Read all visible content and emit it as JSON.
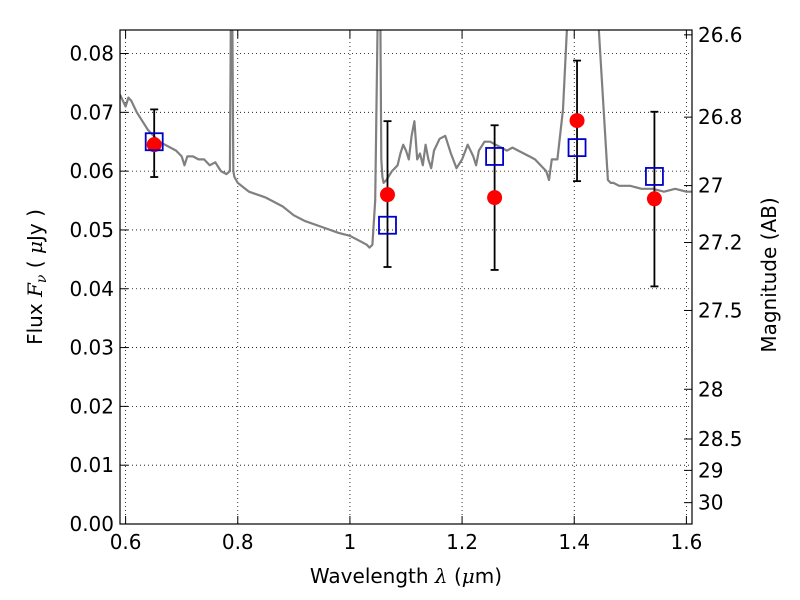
{
  "chart_data": {
    "type": "scatter",
    "xlabel_parts": [
      "Wavelength  ",
      "λ",
      " (",
      "μ",
      "m)"
    ],
    "ylabel_parts": [
      "Flux  ",
      "F",
      "ν",
      "  ( ",
      "μ",
      "Jy )"
    ],
    "y2label": "Magnitude (AB)",
    "xlim": [
      0.59,
      1.61
    ],
    "ylim": [
      0.0,
      0.084
    ],
    "grid": true,
    "x_ticks": [
      0.6,
      0.8,
      1.0,
      1.2,
      1.4,
      1.6
    ],
    "x_tick_labels": [
      "0.6",
      "0.8",
      "1",
      "1.2",
      "1.4",
      "1.6"
    ],
    "y_ticks": [
      0.0,
      0.01,
      0.02,
      0.03,
      0.04,
      0.05,
      0.06,
      0.07,
      0.08
    ],
    "y_tick_labels": [
      "0.00",
      "0.01",
      "0.02",
      "0.03",
      "0.04",
      "0.05",
      "0.06",
      "0.07",
      "0.08"
    ],
    "y2_ticks": [
      {
        "label": "26.6",
        "mag": 26.6
      },
      {
        "label": "26.8",
        "mag": 26.8
      },
      {
        "label": "27",
        "mag": 27.0
      },
      {
        "label": "27.2",
        "mag": 27.2
      },
      {
        "label": "27.5",
        "mag": 27.5
      },
      {
        "label": "28",
        "mag": 28.0
      },
      {
        "label": "28.5",
        "mag": 28.5
      },
      {
        "label": "29",
        "mag": 29.0
      },
      {
        "label": "30",
        "mag": 30.0
      }
    ],
    "colors": {
      "model": "#808080",
      "observed": "#ff0000",
      "model_photometry": "#0000cc",
      "errorbar": "#000000"
    },
    "model_spectrum": {
      "x": [
        0.59,
        0.6,
        0.605,
        0.61,
        0.62,
        0.63,
        0.64,
        0.65,
        0.66,
        0.67,
        0.68,
        0.69,
        0.7,
        0.705,
        0.71,
        0.72,
        0.73,
        0.74,
        0.75,
        0.76,
        0.77,
        0.78,
        0.786,
        0.788,
        0.79,
        0.792,
        0.794,
        0.8,
        0.82,
        0.85,
        0.88,
        0.9,
        0.92,
        0.95,
        0.98,
        1.0,
        1.02,
        1.03,
        1.035,
        1.04,
        1.045,
        1.05,
        1.054,
        1.056,
        1.058,
        1.06,
        1.065,
        1.075,
        1.085,
        1.09,
        1.095,
        1.1,
        1.105,
        1.11,
        1.115,
        1.12,
        1.125,
        1.13,
        1.135,
        1.14,
        1.145,
        1.15,
        1.16,
        1.17,
        1.18,
        1.19,
        1.2,
        1.21,
        1.22,
        1.225,
        1.23,
        1.24,
        1.25,
        1.26,
        1.27,
        1.28,
        1.29,
        1.3,
        1.31,
        1.32,
        1.33,
        1.34,
        1.35,
        1.355,
        1.36,
        1.37,
        1.38,
        1.39,
        1.395,
        1.4,
        1.42,
        1.44,
        1.46,
        1.465,
        1.47,
        1.48,
        1.5,
        1.52,
        1.54,
        1.56,
        1.58,
        1.6,
        1.61
      ],
      "y": [
        0.073,
        0.071,
        0.0725,
        0.072,
        0.07,
        0.0685,
        0.067,
        0.066,
        0.065,
        0.0645,
        0.064,
        0.0635,
        0.0625,
        0.061,
        0.0625,
        0.0625,
        0.062,
        0.062,
        0.061,
        0.0615,
        0.06,
        0.0595,
        0.06,
        0.09,
        0.09,
        0.06,
        0.059,
        0.058,
        0.0565,
        0.0555,
        0.054,
        0.0525,
        0.0515,
        0.0505,
        0.0495,
        0.049,
        0.048,
        0.0475,
        0.047,
        0.0475,
        0.055,
        0.09,
        0.09,
        0.062,
        0.059,
        0.058,
        0.0585,
        0.06,
        0.061,
        0.063,
        0.0645,
        0.0635,
        0.062,
        0.066,
        0.0685,
        0.062,
        0.063,
        0.061,
        0.0645,
        0.062,
        0.0605,
        0.0635,
        0.0655,
        0.066,
        0.063,
        0.0605,
        0.062,
        0.0645,
        0.0625,
        0.061,
        0.0635,
        0.065,
        0.065,
        0.0645,
        0.064,
        0.0635,
        0.064,
        0.0635,
        0.063,
        0.0625,
        0.062,
        0.061,
        0.06,
        0.0585,
        0.062,
        0.062,
        0.0705,
        0.09,
        0.09,
        0.09,
        0.09,
        0.09,
        0.0585,
        0.058,
        0.058,
        0.0575,
        0.0575,
        0.057,
        0.057,
        0.0565,
        0.057,
        0.0565,
        0.0565
      ]
    },
    "observed_points": {
      "x": [
        0.651,
        1.067,
        1.258,
        1.405,
        1.543
      ],
      "y": [
        0.0645,
        0.056,
        0.0555,
        0.0686,
        0.0553
      ]
    },
    "model_photometry_points": {
      "x": [
        0.651,
        1.067,
        1.258,
        1.405,
        1.543
      ],
      "y": [
        0.065,
        0.0508,
        0.0625,
        0.064,
        0.0591
      ]
    },
    "error_bars": [
      {
        "x": 0.651,
        "low": 0.059,
        "high": 0.0705
      },
      {
        "x": 1.067,
        "low": 0.0437,
        "high": 0.0685
      },
      {
        "x": 1.258,
        "low": 0.0432,
        "high": 0.0678
      },
      {
        "x": 1.405,
        "low": 0.0583,
        "high": 0.0788
      },
      {
        "x": 1.543,
        "low": 0.0404,
        "high": 0.0701
      }
    ]
  }
}
